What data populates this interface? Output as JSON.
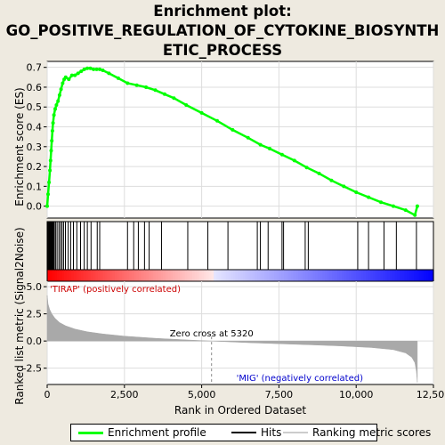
{
  "title_lines": [
    "Enrichment plot:",
    "GO_POSITIVE_REGULATION_OF_CYTOKINE_BIOSYNTH",
    "ETIC_PROCESS"
  ],
  "colors": {
    "es_line": "#00ff00",
    "hits": "#000000",
    "ranking": "#a9a9a9",
    "positive_label": "#cc0000",
    "negative_label": "#0000cc"
  },
  "chart_data": [
    {
      "panel": "running-enrichment-score",
      "type": "line",
      "ylabel": "Enrichment score (ES)",
      "xlim": [
        0,
        12500
      ],
      "ylim": [
        -0.06,
        0.73
      ],
      "yticks": [
        0.0,
        0.1,
        0.2,
        0.3,
        0.4,
        0.5,
        0.6,
        0.7
      ],
      "ytick_labels": [
        "0.0",
        "0.1",
        "0.2",
        "0.3",
        "0.4",
        "0.5",
        "0.6",
        "0.7"
      ],
      "grid": true,
      "series": [
        {
          "x": [
            0,
            30,
            60,
            90,
            110,
            130,
            150,
            170,
            190,
            220,
            260,
            300,
            350,
            400,
            450,
            500,
            550,
            600,
            700,
            800,
            900,
            1000,
            1100,
            1200,
            1300,
            1400,
            1500,
            1600,
            1700,
            1800,
            2000,
            2300,
            2600,
            2900,
            3200,
            3500,
            3800,
            4100,
            4500,
            5000,
            5500,
            6000,
            6500,
            6900,
            7200,
            7600,
            8000,
            8400,
            8800,
            9200,
            9600,
            10000,
            10400,
            10800,
            11200,
            11600,
            11900,
            11980
          ],
          "y": [
            0.0,
            0.06,
            0.12,
            0.18,
            0.23,
            0.28,
            0.33,
            0.38,
            0.42,
            0.46,
            0.49,
            0.51,
            0.53,
            0.56,
            0.59,
            0.62,
            0.64,
            0.65,
            0.64,
            0.66,
            0.66,
            0.67,
            0.68,
            0.69,
            0.695,
            0.695,
            0.69,
            0.69,
            0.69,
            0.685,
            0.67,
            0.645,
            0.62,
            0.61,
            0.6,
            0.585,
            0.565,
            0.545,
            0.51,
            0.47,
            0.43,
            0.385,
            0.345,
            0.31,
            0.29,
            0.26,
            0.23,
            0.195,
            0.165,
            0.13,
            0.1,
            0.07,
            0.045,
            0.02,
            0.0,
            -0.02,
            -0.045,
            0.0
          ]
        }
      ]
    },
    {
      "panel": "hits",
      "type": "scatter",
      "hit_positions": [
        20,
        40,
        60,
        80,
        100,
        120,
        140,
        160,
        180,
        200,
        230,
        270,
        320,
        380,
        430,
        480,
        530,
        590,
        680,
        760,
        850,
        960,
        1080,
        1200,
        1300,
        1420,
        1620,
        1700,
        2600,
        2800,
        2950,
        3150,
        3300,
        3700,
        4550,
        5200,
        5850,
        6800,
        6900,
        7150,
        7600,
        7650,
        8350,
        8450,
        10050,
        10400,
        10900,
        11300,
        11950
      ]
    },
    {
      "panel": "ranked-list-metric",
      "type": "area",
      "ylabel": "Ranked list metric (Signal2Noise)",
      "xlabel": "Rank in Ordered Dataset",
      "xlim": [
        0,
        12500
      ],
      "ylim": [
        -4.0,
        5.5
      ],
      "xticks": [
        0,
        2500,
        5000,
        7500,
        10000,
        12500
      ],
      "xtick_labels": [
        "0",
        "2,500",
        "5,000",
        "7,500",
        "10,000",
        "12,500"
      ],
      "yticks": [
        -2.5,
        0.0,
        2.5,
        5.0
      ],
      "ytick_labels": [
        "-2.5",
        "0.0",
        "2.5",
        "5.0"
      ],
      "x": [
        0,
        30,
        80,
        150,
        250,
        400,
        600,
        900,
        1300,
        1800,
        2500,
        3500,
        4500,
        5320,
        6500,
        7500,
        8500,
        9500,
        10500,
        11200,
        11600,
        11800,
        11900,
        11950,
        11980
      ],
      "values": [
        4.2,
        3.4,
        2.9,
        2.5,
        2.1,
        1.7,
        1.4,
        1.1,
        0.85,
        0.65,
        0.45,
        0.25,
        0.1,
        0.0,
        -0.15,
        -0.25,
        -0.35,
        -0.45,
        -0.6,
        -0.8,
        -1.1,
        -1.5,
        -2.0,
        -2.8,
        -3.8
      ],
      "zero_cross_label": "Zero cross at 5320",
      "zero_cross_rank": 5320,
      "positive_label": "'TIRAP' (positively correlated)",
      "negative_label": "'MIG' (negatively correlated)"
    }
  ],
  "legend": {
    "items": [
      {
        "label": "Enrichment profile",
        "color": "#00ff00"
      },
      {
        "label": "Hits",
        "color": "#000000"
      },
      {
        "label": "Ranking metric scores",
        "color": "#cccccc"
      }
    ]
  }
}
